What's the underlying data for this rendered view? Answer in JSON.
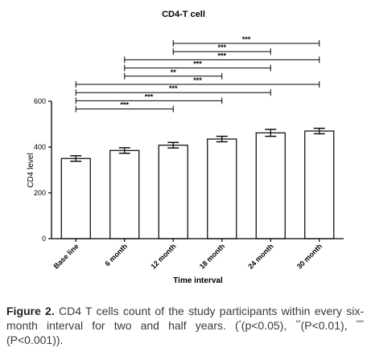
{
  "chart_data": {
    "type": "bar",
    "title": "CD4-T cell",
    "xlabel": "Time interval",
    "ylabel": "CD4 level",
    "categories": [
      "Base line",
      "6 month",
      "12 month",
      "18 month",
      "24 month",
      "30 month"
    ],
    "values": [
      350,
      385,
      408,
      435,
      462,
      470
    ],
    "errors": [
      12,
      12,
      12,
      12,
      15,
      12
    ],
    "ylim": [
      0,
      600
    ],
    "yticks": [
      0,
      200,
      400,
      600
    ],
    "bar_color": "#ffffff",
    "edge_color": "#000000",
    "significance": [
      {
        "from": 2,
        "to": 5,
        "label": "***"
      },
      {
        "from": 2,
        "to": 4,
        "label": "***"
      },
      {
        "from": 1,
        "to": 5,
        "label": "***"
      },
      {
        "from": 1,
        "to": 4,
        "label": "***"
      },
      {
        "from": 1,
        "to": 3,
        "label": "**"
      },
      {
        "from": 0,
        "to": 5,
        "label": "***"
      },
      {
        "from": 0,
        "to": 4,
        "label": "***"
      },
      {
        "from": 0,
        "to": 3,
        "label": "***"
      },
      {
        "from": 0,
        "to": 2,
        "label": "***"
      }
    ]
  },
  "caption": {
    "figure_label": "Figure 2.",
    "text": "CD4 T cells count of the study participants within every six-month interval for two and half years. (",
    "sig1_mark": "*",
    "sig1_text": "(p<0.05), ",
    "sig2_mark": "**",
    "sig2_text": "(P<0.01), ",
    "sig3_mark": "***",
    "sig3_text": "(P<0.001))."
  }
}
